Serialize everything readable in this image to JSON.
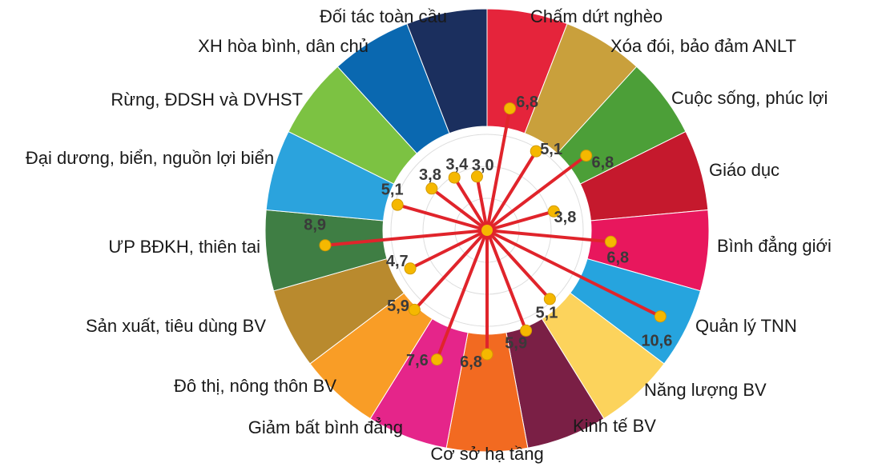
{
  "chart_data": {
    "type": "radial-lollipop",
    "categories": [
      "Chấm dứt nghèo",
      "Xóa đói, bảo đảm ANLT",
      "Cuộc sống, phúc lợi",
      "Giáo dục",
      "Bình đẳng giới",
      "Quản lý TNN",
      "Năng lượng BV",
      "Kinh tế BV",
      "Cơ sở hạ tầng",
      "Giảm bất bình đẳng",
      "Đô thị, nông thôn BV",
      "Sản xuất, tiêu dùng BV",
      "ƯP BĐKH, thiên tai",
      "Đại dương, biển, nguồn lợi biển",
      "Rừng, ĐDSH và DVHST",
      "XH hòa bình, dân chủ",
      "Đối tác toàn cầu"
    ],
    "values": [
      6.8,
      5.1,
      6.8,
      3.8,
      6.8,
      10.6,
      5.1,
      5.9,
      6.8,
      7.6,
      5.9,
      4.7,
      8.9,
      5.1,
      3.8,
      3.4,
      3.0
    ],
    "value_labels": [
      "6,8",
      "5,1",
      "6,8",
      "3,8",
      "6,8",
      "10,6",
      "5,1",
      "5,9",
      "6,8",
      "7,6",
      "5,9",
      "4,7",
      "8,9",
      "5,1",
      "3,8",
      "3,4",
      "3,0"
    ],
    "colors": [
      "#e5243b",
      "#c9a03c",
      "#4c9f38",
      "#c5192d",
      "#e8175d",
      "#26a4de",
      "#fcd35c",
      "#7a1f45",
      "#f26a21",
      "#e5258a",
      "#f99d26",
      "#b98a2e",
      "#3f7e44",
      "#2ba3dd",
      "#7cc242",
      "#0a68b0",
      "#1b2f5e"
    ],
    "line_color": "#e0242b",
    "dot_color": "#f5b800"
  }
}
